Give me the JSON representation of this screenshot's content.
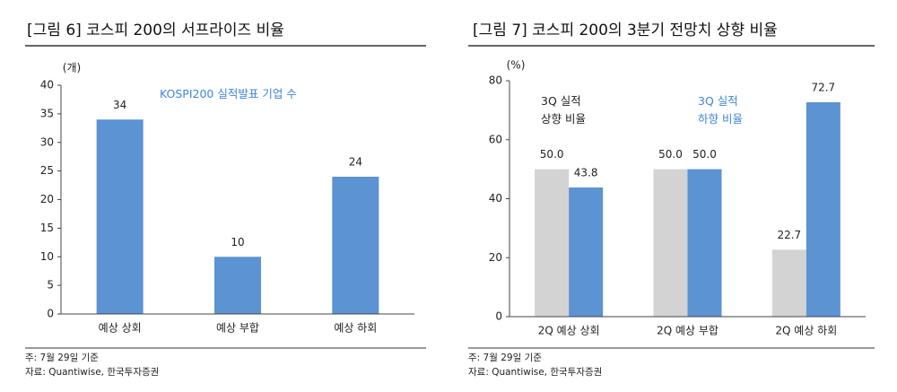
{
  "chart_data": [
    {
      "type": "bar",
      "title": "[그림 6] 코스피 200의 서프라이즈 비율",
      "y_label": "(개)",
      "categories": [
        "예상 상회",
        "예상 부합",
        "예상 하회"
      ],
      "series": [
        {
          "name": "KOSPI200 실적발표 기업 수",
          "color": "#5b93d3",
          "label_color": "#3f86d6",
          "values": [
            34,
            10,
            24
          ]
        }
      ],
      "ylim": [
        0,
        40
      ],
      "yticks": [
        0,
        5,
        10,
        15,
        20,
        25,
        30,
        35,
        40
      ],
      "notes": [
        "주: 7월 29일 기준",
        "자료: Quantiwise, 한국투자증권"
      ]
    },
    {
      "type": "bar",
      "title": "[그림 7] 코스피 200의 3분기 전망치 상향 비율",
      "y_label": "(%)",
      "categories": [
        "2Q 예상 상회",
        "2Q 예상 부합",
        "2Q 예상 하회"
      ],
      "series": [
        {
          "name": "3Q 실적\n상향 비율",
          "color": "#d3d3d3",
          "label_color": "#222222",
          "values": [
            50,
            50,
            22.7
          ],
          "value_labels": [
            "50.0",
            "50.0",
            "22.7"
          ]
        },
        {
          "name": "3Q 실적\n하향 비율",
          "color": "#5b93d3",
          "label_color": "#3f86d6",
          "values": [
            43.8,
            50,
            72.7
          ],
          "value_labels": [
            "43.8",
            "50.0",
            "72.7"
          ]
        }
      ],
      "ylim": [
        0,
        80
      ],
      "yticks": [
        0,
        20,
        40,
        60,
        80
      ],
      "notes": [
        "주: 7월 29일 기준",
        "자료: Quantiwise, 한국투자증권"
      ]
    }
  ]
}
